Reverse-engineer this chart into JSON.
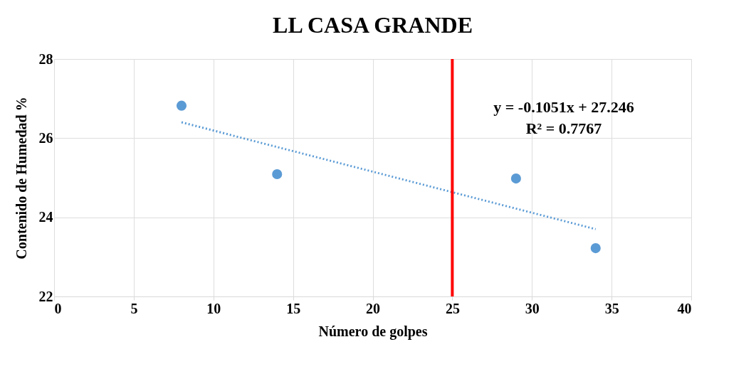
{
  "chart_data": {
    "type": "scatter",
    "title": "LL CASA GRANDE",
    "xlabel": "Número de golpes",
    "ylabel": "Contenido de Humedad %",
    "xlim": [
      0,
      40
    ],
    "xticks": [
      0,
      5,
      10,
      15,
      20,
      25,
      30,
      35,
      40
    ],
    "ylim": [
      22,
      28
    ],
    "yticks": [
      22,
      24,
      26,
      28
    ],
    "grid": true,
    "marker": "circle",
    "series": [
      {
        "color": "#5b9bd5",
        "x": [
          8,
          14,
          29,
          34
        ],
        "values": [
          26.82,
          25.09,
          24.98,
          23.22
        ]
      },
      {
        "type": "line",
        "color": "#5b9bd5",
        "line_style": "dotted",
        "marker": "none",
        "x": [
          8,
          34
        ],
        "values": [
          26.4,
          23.7
        ]
      }
    ],
    "ref_lines": [
      {
        "axis": "x",
        "value": 25,
        "color": "#ff0000"
      }
    ],
    "annotations": [
      "y = -0.1051x + 27.246",
      "R² = 0.7767"
    ]
  }
}
